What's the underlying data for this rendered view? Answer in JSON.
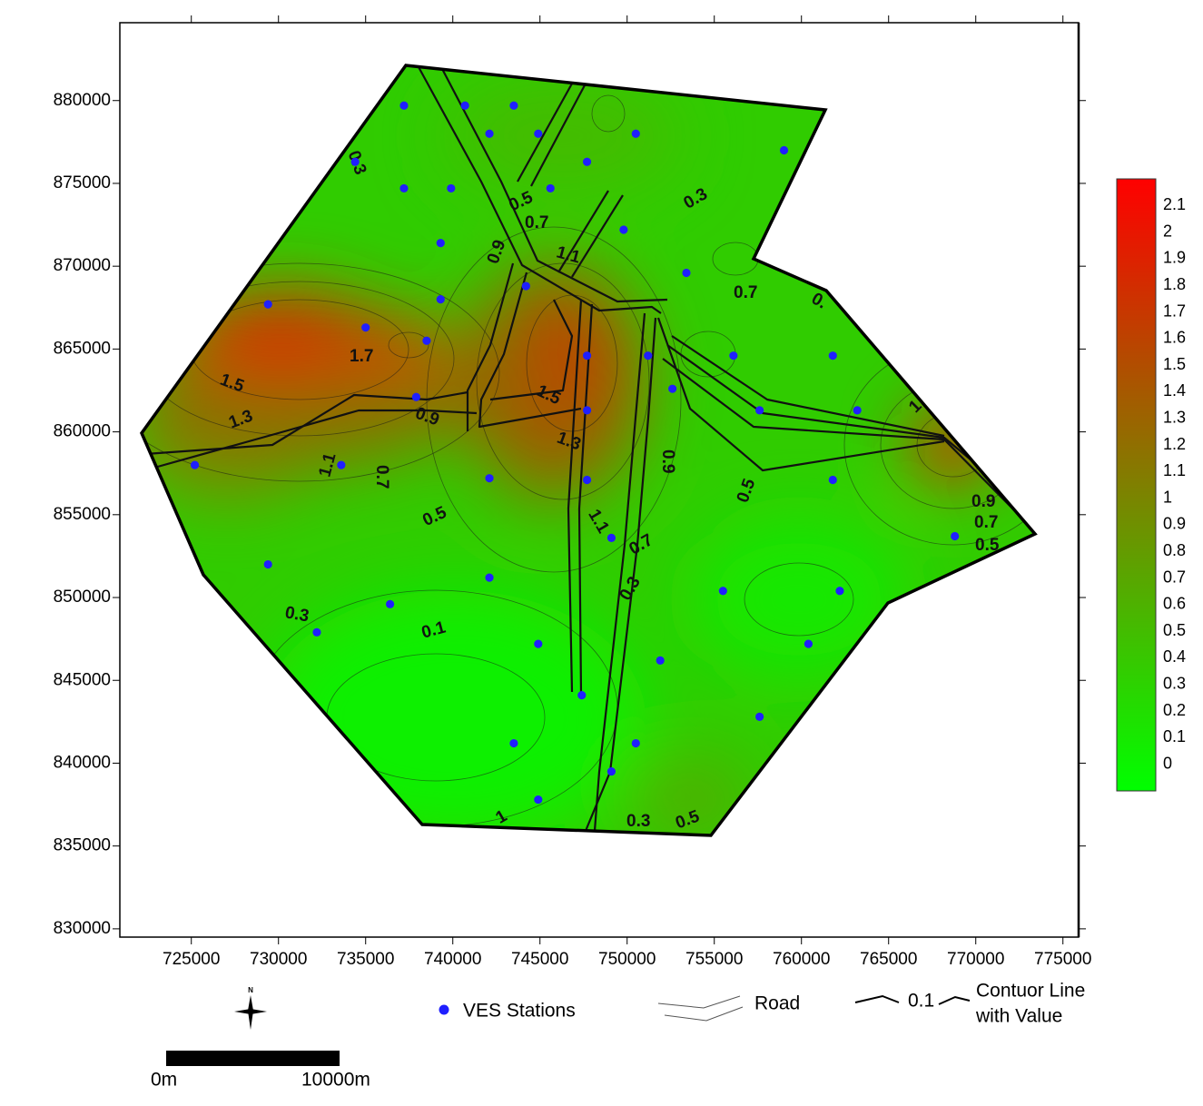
{
  "chart_data": {
    "type": "scatter",
    "xlim": [
      720900,
      775900
    ],
    "ylim": [
      829500,
      884700
    ],
    "xticks": [
      725000,
      730000,
      735000,
      740000,
      745000,
      750000,
      755000,
      760000,
      765000,
      770000,
      775000
    ],
    "yticks": [
      830000,
      835000,
      840000,
      845000,
      850000,
      855000,
      860000,
      865000,
      870000,
      875000,
      880000
    ],
    "series": [
      {
        "name": "VES Stations",
        "color": "#1f1fff",
        "x": [
          737200,
          740700,
          743500,
          742100,
          744900,
          750500,
          747700,
          759000,
          734400,
          737200,
          739900,
          745600,
          749800,
          739300,
          753400,
          744200,
          739300,
          729400,
          735000,
          738500,
          747700,
          751200,
          756100,
          761800,
          752600,
          737900,
          747700,
          757600,
          763200,
          725200,
          733600,
          742100,
          747700,
          761800,
          749100,
          768800,
          729400,
          742100,
          755500,
          762200,
          736400,
          732200,
          744900,
          760400,
          751900,
          747400,
          757600,
          743500,
          750500,
          749100,
          744900
        ],
        "values": [
          879700,
          879700,
          879700,
          878000,
          878000,
          878000,
          876300,
          877000,
          876300,
          874700,
          874700,
          874700,
          872200,
          871400,
          869600,
          868800,
          868000,
          867700,
          866300,
          865500,
          864600,
          864600,
          864600,
          864600,
          862600,
          862100,
          861300,
          861300,
          861300,
          858000,
          858000,
          857200,
          857100,
          857100,
          853600,
          853700,
          852000,
          851200,
          850400,
          850400,
          849600,
          847900,
          847200,
          847200,
          846200,
          844100,
          842800,
          841200,
          841200,
          839500,
          837800
        ]
      }
    ],
    "colorbar": {
      "lim": [
        -0.1,
        2.2
      ],
      "colors": [
        "#00ff00",
        "#ff0000"
      ],
      "ticks": [
        0,
        0.1,
        0.2,
        0.3,
        0.4,
        0.5,
        0.6,
        0.7,
        0.8,
        0.9,
        1,
        1.1,
        1.2,
        1.3,
        1.4,
        1.5,
        1.6,
        1.7,
        1.8,
        1.9,
        2,
        2.1
      ]
    },
    "contour_labels": [
      "0.3",
      "0.5",
      "0.7",
      "1.1",
      "0.9",
      "0.3",
      "0.7",
      "0.",
      "1.7",
      "1.5",
      "1.3",
      "0.9",
      "1.5",
      "1.3",
      "0.9",
      "1",
      "1.1",
      "0.7",
      "0.5",
      "1.1",
      "0.7",
      "0.3",
      "0.5",
      "0.9",
      "0.7",
      "0.5",
      "0.3",
      "0.1",
      "1",
      "0.3",
      "0.5"
    ],
    "legend": {
      "road": "Road",
      "contour_value": "0.1",
      "contour_text": [
        "Contuor Line",
        "with Value"
      ]
    },
    "scale_bar": [
      "0m",
      "10000m"
    ],
    "north": "N"
  }
}
